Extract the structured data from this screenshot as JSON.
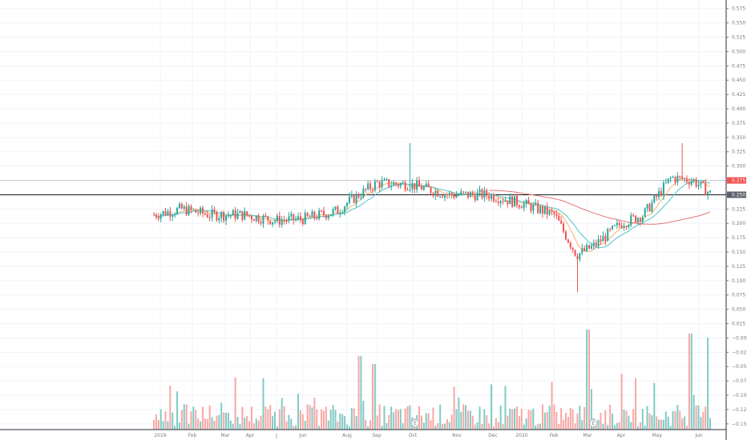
{
  "chart_data": {
    "type": "candlestick",
    "price_axis": {
      "range": [
        -0.16,
        0.59
      ],
      "ticks": [
        "0.575",
        "0.550",
        "0.525",
        "0.500",
        "0.475",
        "0.450",
        "0.425",
        "0.400",
        "0.375",
        "0.350",
        "0.325",
        "0.300",
        "0.275",
        "0.250",
        "0.225",
        "0.200",
        "0.175",
        "0.150",
        "0.125",
        "0.100",
        "0.075",
        "0.050",
        "0.025",
        "−0.000",
        "−0.025",
        "−0.050",
        "−0.075",
        "−0.100",
        "−0.125",
        "−0.150"
      ],
      "tick_values": [
        0.575,
        0.55,
        0.525,
        0.5,
        0.475,
        0.45,
        0.425,
        0.4,
        0.375,
        0.35,
        0.325,
        0.3,
        0.275,
        0.25,
        0.225,
        0.2,
        0.175,
        0.15,
        0.125,
        0.1,
        0.075,
        0.05,
        0.025,
        0,
        -0.025,
        -0.05,
        -0.075,
        -0.1,
        -0.125,
        -0.15
      ]
    },
    "x_axis": {
      "labels": [
        "2019",
        "Feb",
        "Mar",
        "Apr",
        "J",
        "Jun",
        "Aug",
        "Sep",
        "Oct",
        "Nov",
        "Dec",
        "2020",
        "Feb",
        "Mar",
        "Apr",
        "May",
        "Jun"
      ],
      "label_positions": [
        0.0,
        0.024,
        0.047,
        0.073,
        0.094,
        0.118,
        0.165,
        0.19,
        0.215,
        0.24,
        0.263,
        0.287,
        0.311,
        0.335,
        0.359,
        0.383,
        0.41
      ]
    },
    "price_tags": [
      {
        "label": "0.275",
        "value": 0.275,
        "color": "#ef5350"
      },
      {
        "label": "0.250",
        "value": 0.25,
        "color": "#5d606b"
      }
    ],
    "horizontal_line": {
      "value": 0.25
    },
    "colors": {
      "up": "#26a69a",
      "down": "#ef5350",
      "up_volume": "#80cbc4",
      "down_volume": "#f7a7a5",
      "ma_fast": "#f6b26b",
      "ma_mid": "#4fc3c7",
      "ma_slow": "#e57373",
      "ma_slower": "#5bc0de"
    },
    "events": [
      {
        "label": "E",
        "date_index": 0.47
      },
      {
        "label": "E",
        "date_index": 0.79
      }
    ]
  }
}
